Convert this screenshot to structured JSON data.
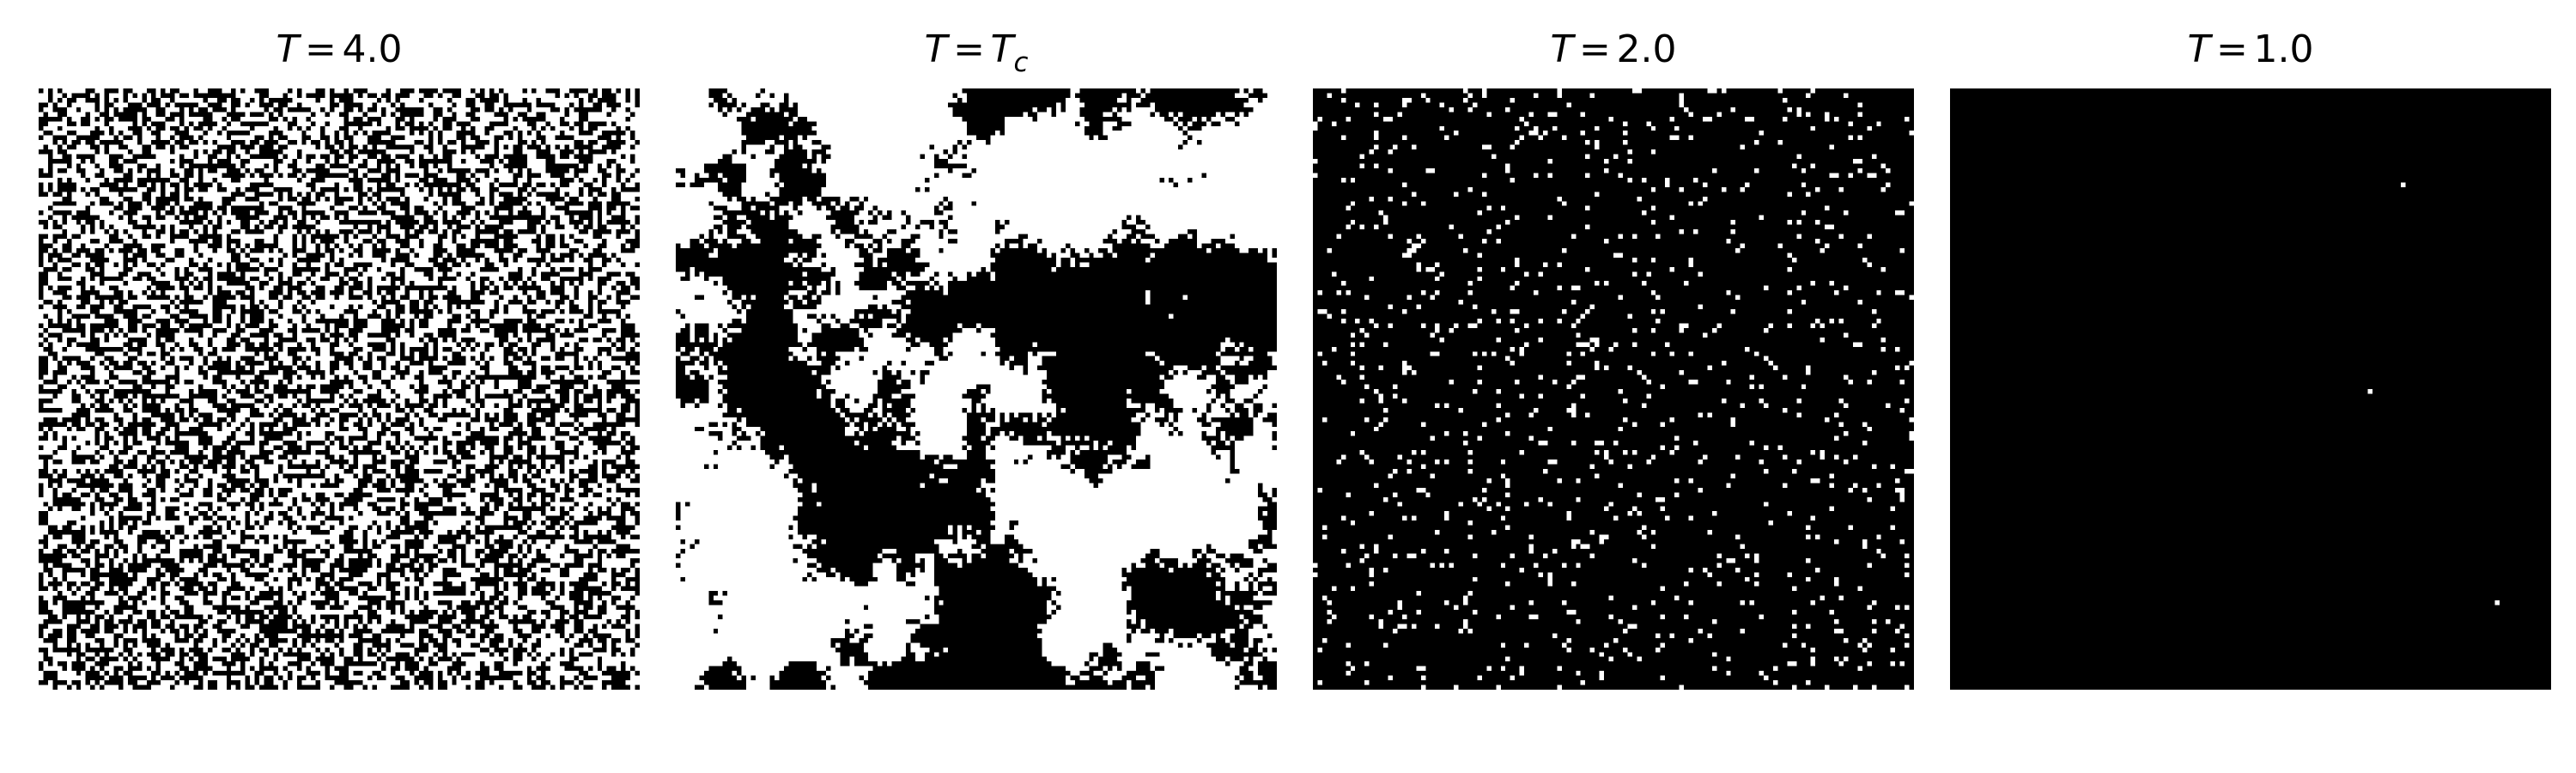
{
  "figure": {
    "panels": [
      {
        "symbol": "T",
        "equals": "=",
        "value": "4.0",
        "value_sub": "",
        "state": "disordered",
        "spin_up_fraction": 0.5,
        "cluster_scale": 1
      },
      {
        "symbol": "T",
        "equals": "=",
        "value": "T",
        "value_sub": "c",
        "state": "critical",
        "spin_up_fraction": 0.5,
        "cluster_scale": 10
      },
      {
        "symbol": "T",
        "equals": "=",
        "value": "2.0",
        "value_sub": "",
        "state": "mostly-ordered",
        "spin_up_fraction": 0.06,
        "cluster_scale": 1
      },
      {
        "symbol": "T",
        "equals": "=",
        "value": "1.0",
        "value_sub": "",
        "state": "ordered",
        "spin_up_fraction": 0.0004,
        "cluster_scale": 1
      }
    ],
    "lattice_size": 128,
    "colors": {
      "spin_up": "#ffffff",
      "spin_down": "#000000"
    }
  }
}
